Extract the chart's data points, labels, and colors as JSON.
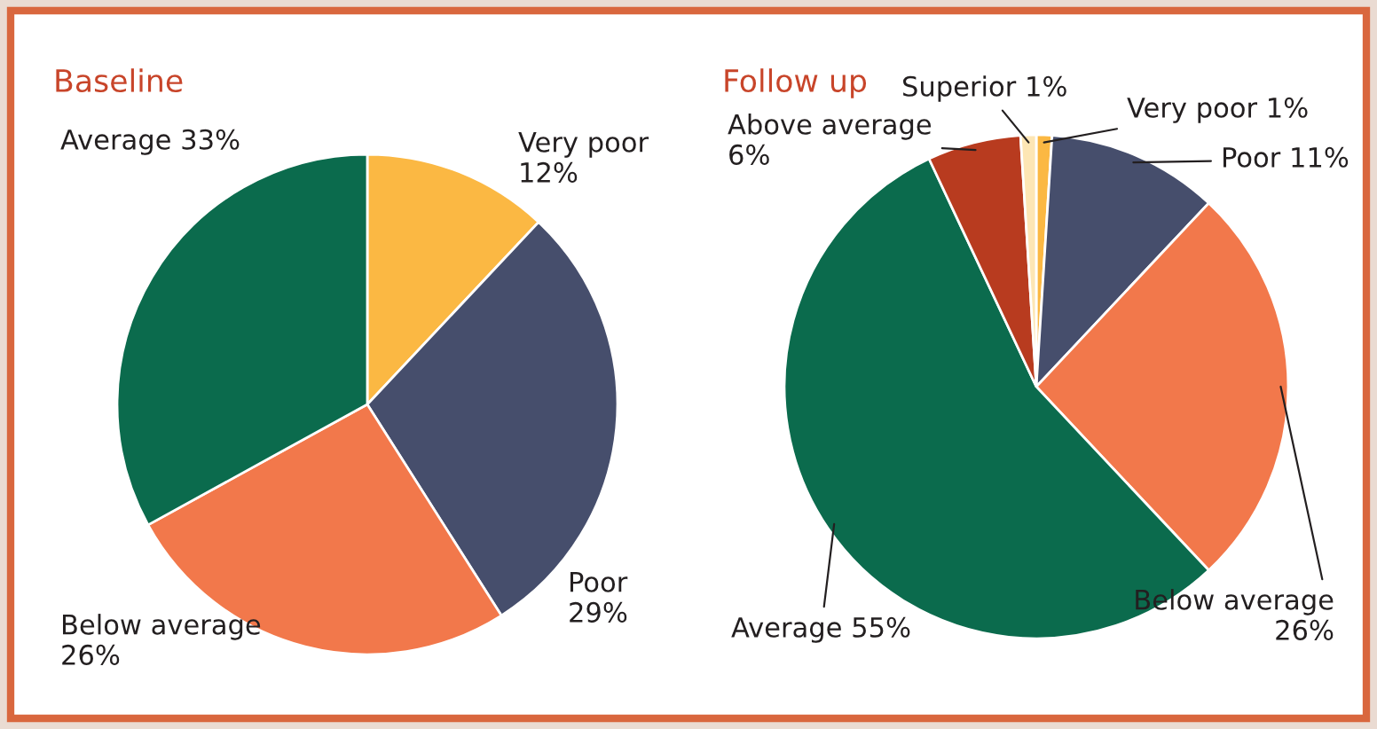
{
  "chart_data": [
    {
      "type": "pie",
      "title": "Baseline",
      "categories": [
        "Very poor",
        "Poor",
        "Below average",
        "Average"
      ],
      "values": [
        12,
        29,
        26,
        33
      ],
      "value_labels": [
        "12%",
        "29%",
        "26%",
        "33%"
      ],
      "colors": [
        "#fbb843",
        "#464e6c",
        "#f2784b",
        "#0b6b4d"
      ],
      "legend": false
    },
    {
      "type": "pie",
      "title": "Follow up",
      "categories": [
        "Very poor",
        "Poor",
        "Below average",
        "Average",
        "Above average",
        "Superior"
      ],
      "values": [
        1,
        11,
        26,
        55,
        6,
        1
      ],
      "value_labels": [
        "1%",
        "11%",
        "26%",
        "55%",
        "6%",
        "1%"
      ],
      "colors": [
        "#fbb843",
        "#464e6c",
        "#f2784b",
        "#0b6b4d",
        "#b83b1f",
        "#fde6b4"
      ],
      "legend": false
    }
  ]
}
